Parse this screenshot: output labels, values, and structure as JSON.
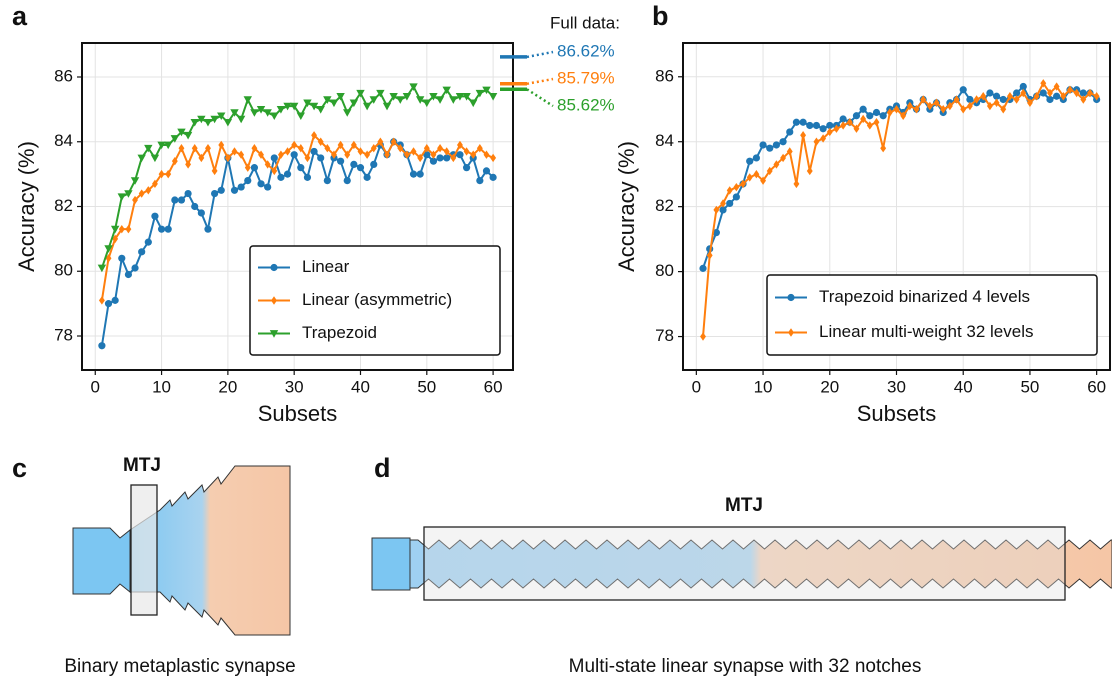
{
  "chart_data": [
    {
      "type": "line",
      "panel_label": "a",
      "x_label": "Subsets",
      "y_label": "Accuracy (%)",
      "x": [
        1,
        2,
        3,
        4,
        5,
        6,
        7,
        8,
        9,
        10,
        11,
        12,
        13,
        14,
        15,
        16,
        17,
        18,
        19,
        20,
        21,
        22,
        23,
        24,
        25,
        26,
        27,
        28,
        29,
        30,
        31,
        32,
        33,
        34,
        35,
        36,
        37,
        38,
        39,
        40,
        41,
        42,
        43,
        44,
        45,
        46,
        47,
        48,
        49,
        50,
        51,
        52,
        53,
        54,
        55,
        56,
        57,
        58,
        59,
        60
      ],
      "xlim": [
        -2,
        63
      ],
      "xticks": [
        0,
        10,
        20,
        30,
        40,
        50,
        60
      ],
      "ylim": [
        76.95,
        87.05
      ],
      "yticks": [
        78,
        80,
        82,
        84,
        86
      ],
      "grid": true,
      "legend": "lower right",
      "series": [
        {
          "name": "Linear",
          "color": "#1f77b4",
          "marker": "circle",
          "values": [
            77.7,
            79.0,
            79.1,
            80.4,
            79.9,
            80.1,
            80.6,
            80.9,
            81.7,
            81.3,
            81.3,
            82.2,
            82.2,
            82.4,
            82.0,
            81.8,
            81.3,
            82.4,
            82.5,
            83.5,
            82.5,
            82.6,
            82.8,
            83.2,
            82.7,
            82.6,
            83.5,
            82.9,
            83.0,
            83.6,
            83.2,
            82.9,
            83.7,
            83.5,
            82.8,
            83.5,
            83.4,
            82.8,
            83.3,
            83.2,
            82.9,
            83.3,
            83.9,
            83.6,
            84.0,
            83.9,
            83.6,
            83.0,
            83.0,
            83.6,
            83.4,
            83.5,
            83.5,
            83.6,
            83.6,
            83.2,
            83.5,
            82.8,
            83.1,
            82.9
          ]
        },
        {
          "name": "Linear (asymmetric)",
          "color": "#ff7f0e",
          "marker": "diamond",
          "values": [
            79.1,
            80.4,
            81.0,
            81.3,
            81.3,
            82.2,
            82.4,
            82.5,
            82.7,
            83.0,
            83.0,
            83.4,
            83.8,
            83.3,
            83.8,
            83.5,
            83.8,
            83.1,
            83.9,
            83.5,
            83.7,
            83.6,
            83.2,
            83.8,
            83.6,
            83.3,
            83.1,
            83.6,
            83.7,
            83.9,
            83.8,
            83.5,
            84.2,
            84.0,
            83.8,
            83.6,
            83.9,
            83.6,
            83.9,
            83.7,
            83.6,
            83.8,
            84.0,
            83.6,
            84.0,
            83.8,
            83.6,
            83.7,
            83.5,
            83.8,
            83.6,
            83.8,
            83.7,
            83.5,
            83.9,
            83.7,
            83.6,
            83.8,
            83.6,
            83.5
          ]
        },
        {
          "name": "Trapezoid",
          "color": "#2ca02c",
          "marker": "triangle-down",
          "values": [
            80.1,
            80.7,
            81.3,
            82.3,
            82.4,
            82.8,
            83.5,
            83.8,
            83.5,
            83.9,
            83.9,
            84.1,
            84.3,
            84.2,
            84.6,
            84.7,
            84.6,
            84.7,
            84.8,
            84.6,
            84.9,
            84.7,
            85.3,
            84.9,
            85.0,
            84.9,
            84.8,
            85.0,
            85.1,
            85.1,
            84.8,
            85.2,
            85.1,
            85.0,
            85.3,
            85.2,
            85.4,
            84.9,
            85.2,
            85.5,
            85.1,
            85.3,
            85.5,
            85.1,
            85.4,
            85.3,
            85.4,
            85.7,
            85.3,
            85.2,
            85.4,
            85.3,
            85.6,
            85.3,
            85.4,
            85.4,
            85.2,
            85.5,
            85.6,
            85.4
          ]
        }
      ],
      "full_data": {
        "title": "Full data:",
        "values": [
          86.62,
          85.79,
          85.62
        ],
        "value_labels": [
          "86.62%",
          "85.79%",
          "85.62%"
        ]
      }
    },
    {
      "type": "line",
      "panel_label": "b",
      "x_label": "Subsets",
      "y_label": "Accuracy (%)",
      "x": [
        1,
        2,
        3,
        4,
        5,
        6,
        7,
        8,
        9,
        10,
        11,
        12,
        13,
        14,
        15,
        16,
        17,
        18,
        19,
        20,
        21,
        22,
        23,
        24,
        25,
        26,
        27,
        28,
        29,
        30,
        31,
        32,
        33,
        34,
        35,
        36,
        37,
        38,
        39,
        40,
        41,
        42,
        43,
        44,
        45,
        46,
        47,
        48,
        49,
        50,
        51,
        52,
        53,
        54,
        55,
        56,
        57,
        58,
        59,
        60
      ],
      "xlim": [
        -2,
        62
      ],
      "xticks": [
        0,
        10,
        20,
        30,
        40,
        50,
        60
      ],
      "ylim": [
        76.97,
        87.04
      ],
      "yticks": [
        78,
        80,
        82,
        84,
        86
      ],
      "grid": true,
      "legend": "lower right",
      "series": [
        {
          "name": "Trapezoid binarized 4 levels",
          "color": "#1f77b4",
          "marker": "circle",
          "values": [
            80.1,
            80.7,
            81.2,
            81.9,
            82.1,
            82.3,
            82.7,
            83.4,
            83.5,
            83.9,
            83.8,
            83.9,
            84.0,
            84.3,
            84.6,
            84.6,
            84.5,
            84.5,
            84.4,
            84.5,
            84.5,
            84.7,
            84.6,
            84.8,
            85.0,
            84.8,
            84.9,
            84.8,
            85.0,
            85.1,
            84.9,
            85.2,
            85.0,
            85.3,
            85.0,
            85.2,
            84.9,
            85.2,
            85.3,
            85.6,
            85.3,
            85.2,
            85.3,
            85.5,
            85.4,
            85.3,
            85.3,
            85.5,
            85.7,
            85.3,
            85.4,
            85.5,
            85.3,
            85.4,
            85.3,
            85.6,
            85.6,
            85.5,
            85.5,
            85.3
          ]
        },
        {
          "name": "Linear multi-weight 32 levels",
          "color": "#ff7f0e",
          "marker": "diamond",
          "values": [
            78.0,
            80.5,
            81.9,
            82.1,
            82.5,
            82.6,
            82.7,
            82.9,
            83.0,
            82.8,
            83.1,
            83.3,
            83.5,
            83.7,
            82.7,
            84.2,
            83.1,
            84.0,
            84.1,
            84.3,
            84.4,
            84.5,
            84.6,
            84.4,
            84.7,
            84.5,
            84.6,
            83.8,
            84.9,
            85.0,
            84.8,
            85.1,
            85.0,
            85.3,
            85.1,
            85.2,
            85.0,
            85.1,
            85.3,
            85.0,
            85.1,
            85.3,
            85.4,
            85.1,
            85.2,
            85.0,
            85.4,
            85.3,
            85.5,
            85.2,
            85.4,
            85.8,
            85.5,
            85.7,
            85.4,
            85.6,
            85.5,
            85.3,
            85.5,
            85.4
          ]
        }
      ]
    }
  ],
  "diagram_c": {
    "panel_label": "c",
    "element": "MTJ",
    "caption": "Binary metaplastic synapse"
  },
  "diagram_d": {
    "panel_label": "d",
    "element": "MTJ",
    "caption": "Multi-state linear synapse with 32 notches"
  }
}
